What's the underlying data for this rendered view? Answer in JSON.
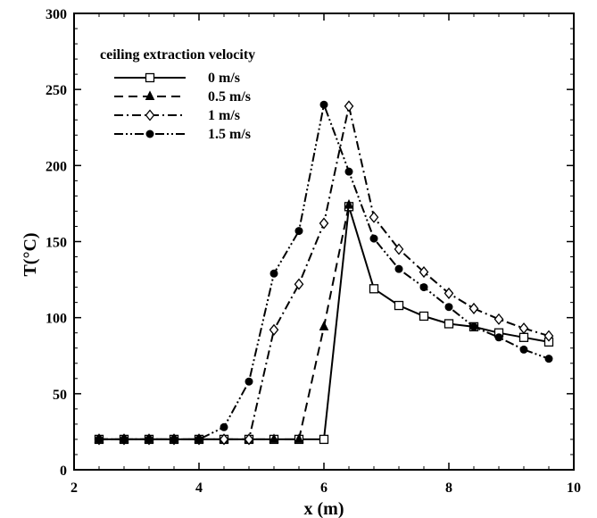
{
  "chart_data": {
    "type": "line",
    "title": "",
    "xlabel": "x (m)",
    "ylabel": "T(°C)",
    "xlim": [
      2,
      10
    ],
    "ylim": [
      0,
      300
    ],
    "xticks": [
      2,
      4,
      6,
      8,
      10
    ],
    "yticks": [
      0,
      50,
      100,
      150,
      200,
      250,
      300
    ],
    "grid": false,
    "legend": {
      "title": "ceiling extraction velocity",
      "position": "top-left"
    },
    "x": [
      2.4,
      2.8,
      3.2,
      3.6,
      4.0,
      4.4,
      4.8,
      5.2,
      5.6,
      6.0,
      6.4,
      6.8,
      7.2,
      7.6,
      8.0,
      8.4,
      8.8,
      9.2,
      9.6
    ],
    "series": [
      {
        "name": "0 m/s",
        "line": "solid",
        "marker": "square-open",
        "values": [
          20,
          20,
          20,
          20,
          20,
          20,
          20,
          20,
          20,
          20,
          173,
          119,
          108,
          101,
          96,
          94,
          90,
          87,
          84
        ]
      },
      {
        "name": "0.5 m/s",
        "line": "dashed",
        "marker": "triangle-filled",
        "values": [
          20,
          20,
          20,
          20,
          20,
          20,
          20,
          20,
          20,
          94,
          174,
          null,
          null,
          null,
          null,
          null,
          null,
          null,
          null
        ]
      },
      {
        "name": "1 m/s",
        "line": "dashdot",
        "marker": "diamond-open",
        "values": [
          20,
          20,
          20,
          20,
          20,
          20,
          20,
          92,
          122,
          162,
          239,
          166,
          145,
          130,
          116,
          106,
          99,
          93,
          88
        ]
      },
      {
        "name": "1.5 m/s",
        "line": "dashdotdot",
        "marker": "circle-filled",
        "values": [
          20,
          20,
          20,
          20,
          20,
          28,
          58,
          129,
          157,
          240,
          196,
          152,
          132,
          120,
          107,
          94,
          87,
          79,
          73
        ]
      }
    ]
  }
}
